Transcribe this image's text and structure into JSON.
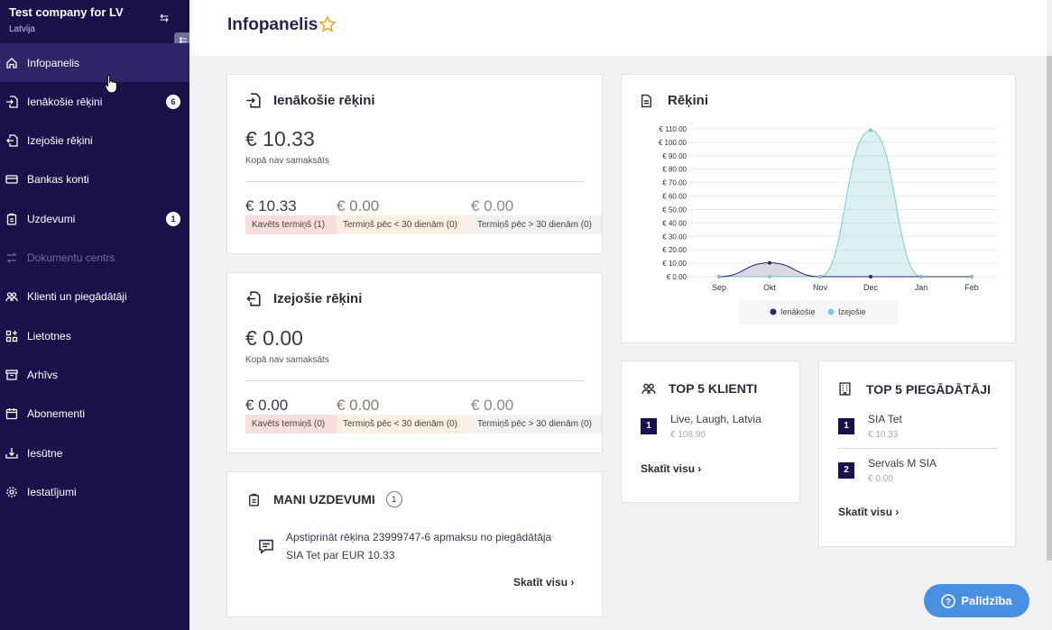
{
  "company": {
    "name": "Test company for LV",
    "country": "Latvija"
  },
  "nav": [
    {
      "label": "Infopanelis",
      "icon": "home-icon"
    },
    {
      "label": "Ienākošie rēķini",
      "icon": "incoming-doc-icon",
      "badge": "6"
    },
    {
      "label": "Izejošie rēķini",
      "icon": "outgoing-doc-icon"
    },
    {
      "label": "Bankas konti",
      "icon": "card-icon"
    },
    {
      "label": "Uzdevumi",
      "icon": "clipboard-icon",
      "badge": "1"
    },
    {
      "label": "Dokumentu centrs",
      "icon": "transfer-icon"
    },
    {
      "label": "Klienti un piegādātāji",
      "icon": "users-icon"
    },
    {
      "label": "Lietotnes",
      "icon": "apps-icon"
    },
    {
      "label": "Arhīvs",
      "icon": "archive-icon"
    },
    {
      "label": "Abonementi",
      "icon": "calendar-icon"
    },
    {
      "label": "Iesūtne",
      "icon": "inbox-icon"
    },
    {
      "label": "Iestatījumi",
      "icon": "gear-icon"
    }
  ],
  "page": {
    "title": "Infopanelis"
  },
  "incoming": {
    "title": "Ienākošie rēķini",
    "total": "€ 10.33",
    "total_label": "Kopā nav samaksāts",
    "amounts": [
      "€ 10.33",
      "€ 0.00",
      "€ 0.00"
    ],
    "tags": [
      "Kavēts termiņš (1)",
      "Termiņš pēc < 30 dienām (0)",
      "Termiņš pēc > 30 dienām (0)"
    ]
  },
  "outgoing": {
    "title": "Izejošie rēķini",
    "total": "€ 0.00",
    "total_label": "Kopā nav samaksāts",
    "amounts": [
      "€ 0.00",
      "€ 0.00",
      "€ 0.00"
    ],
    "tags": [
      "Kavēts termiņš (0)",
      "Termiņš pēc < 30 dienām (0)",
      "Termiņš pēc > 30 dienām (0)"
    ]
  },
  "tasks": {
    "title": "MANI UZDEVUMI",
    "count": "1",
    "line1": "Apstiprināt rēķina 23999747-6 apmaksu no piegādātāja",
    "line2": "SIA Tet par EUR 10.33",
    "link": "Skatīt visu"
  },
  "invoices_chart": {
    "title": "Rēķini"
  },
  "chart_data": {
    "type": "area",
    "title": "Rēķini",
    "categories": [
      "Sep",
      "Okt",
      "Nov",
      "Dec",
      "Jan",
      "Feb"
    ],
    "y_ticks": [
      "€ 0.00",
      "€ 10.00",
      "€ 20.00",
      "€ 30.00",
      "€ 40.00",
      "€ 50.00",
      "€ 60.00",
      "€ 70.00",
      "€ 80.00",
      "€ 90.00",
      "€ 100.00",
      "€ 110.00"
    ],
    "ylim": [
      0,
      110
    ],
    "series": [
      {
        "name": "Ienākošie",
        "color": "#2d2568",
        "values": [
          0,
          10.33,
          0,
          0,
          0,
          0
        ]
      },
      {
        "name": "Izejošie",
        "color": "#7ec8d3",
        "values": [
          0,
          0,
          0,
          108.9,
          0,
          0
        ]
      }
    ],
    "legend": "bottom"
  },
  "top_clients": {
    "title": "TOP 5 KLIENTI",
    "items": [
      {
        "rank": "1",
        "name": "Live, Laugh, Latvia",
        "amount": "€ 108.90"
      }
    ],
    "link": "Skatīt visu"
  },
  "top_suppliers": {
    "title": "TOP 5 PIEGĀDĀTĀJI",
    "items": [
      {
        "rank": "1",
        "name": "SIA Tet",
        "amount": "€ 10.33"
      },
      {
        "rank": "2",
        "name": "Servals M SIA",
        "amount": "€ 0.00"
      }
    ],
    "link": "Skatīt visu"
  },
  "help": {
    "label": "Palīdzība"
  }
}
